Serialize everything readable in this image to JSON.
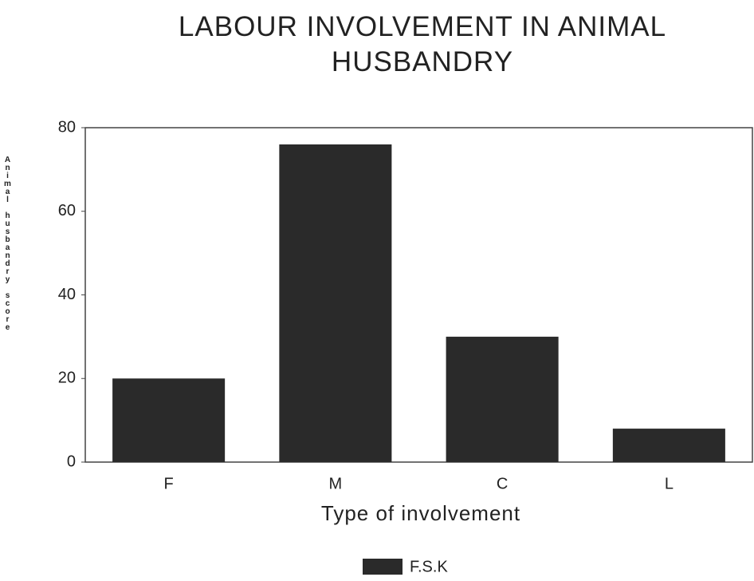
{
  "chart_data": {
    "type": "bar",
    "title": "LABOUR INVOLVEMENT IN ANIMAL HUSBANDRY",
    "x_label": "Type of involvement",
    "y_label": "Animal husbandry score",
    "categories": [
      "F",
      "M",
      "C",
      "L"
    ],
    "series": [
      {
        "name": "F.S.K",
        "color": "#2a2a2a",
        "values": [
          20,
          76,
          30,
          8
        ]
      }
    ],
    "ylim": [
      0,
      80
    ],
    "yticks": [
      0,
      20,
      40,
      60,
      80
    ],
    "legend": "bottom"
  }
}
